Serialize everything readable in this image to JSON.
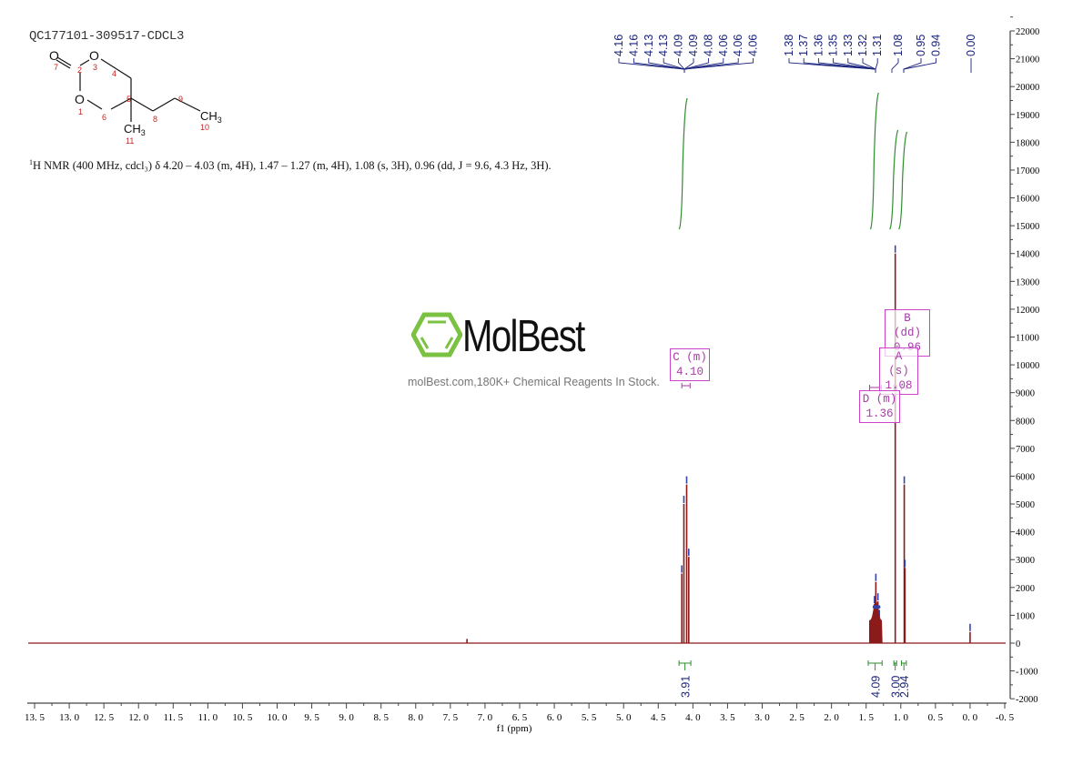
{
  "header": {
    "sample_id": "QC177101-309517-CDCL3",
    "nmr_description_prefix": "1",
    "nmr_description": "H NMR (400 MHz, cdcl₃) δ 4.20 – 4.03 (m, 4H), 1.47 – 1.27 (m, 4H), 1.08 (s, 3H), 0.96 (dd, J = 9.6, 4.3 Hz, 3H)."
  },
  "structure": {
    "atoms": [
      {
        "label": "O",
        "num": "7"
      },
      {
        "label": "",
        "num": "2"
      },
      {
        "label": "O",
        "num": "3"
      },
      {
        "label": "",
        "num": "4"
      },
      {
        "label": "",
        "num": "5"
      },
      {
        "label": "O",
        "num": "1"
      },
      {
        "label": "",
        "num": "6"
      },
      {
        "label": "",
        "num": "8"
      },
      {
        "label": "",
        "num": "9"
      },
      {
        "label": "CH3",
        "num": "10"
      },
      {
        "label": "CH3",
        "num": "11"
      }
    ]
  },
  "watermark": {
    "brand": "MolBest",
    "tagline": "molBest.com,180K+ Chemical Reagents In Stock."
  },
  "colors": {
    "spectrum": "#8b1a1a",
    "peak_labels": "#1a237e",
    "integral": "#2e8b2e",
    "multiplet_box": "#cc44cc",
    "axis": "#444444",
    "logo_green": "#7cc242"
  },
  "chart_data": {
    "type": "line",
    "title": "QC177101-309517-CDCL3",
    "xlabel": "f1 (ppm)",
    "ylabel": "",
    "xlim": [
      13.5,
      -0.5
    ],
    "ylim": [
      -2000,
      22000
    ],
    "x_ticks": [
      "13.5",
      "13.0",
      "12.5",
      "12.0",
      "11.5",
      "11.0",
      "10.5",
      "10.0",
      "9.5",
      "9.0",
      "8.5",
      "8.0",
      "7.5",
      "7.0",
      "6.5",
      "6.0",
      "5.5",
      "5.0",
      "4.5",
      "4.0",
      "3.5",
      "3.0",
      "2.5",
      "2.0",
      "1.5",
      "1.0",
      "0.5",
      "0.0",
      "-0.5"
    ],
    "y_ticks": [
      "22000",
      "21000",
      "20000",
      "19000",
      "18000",
      "17000",
      "16000",
      "15000",
      "14000",
      "13000",
      "12000",
      "11000",
      "10000",
      "9000",
      "8000",
      "7000",
      "6000",
      "5000",
      "4000",
      "3000",
      "2000",
      "1000",
      "0",
      "-1000",
      "-2000"
    ],
    "grid": false,
    "peaks": [
      {
        "ppm": 7.26,
        "intensity": 150
      },
      {
        "ppm": 4.16,
        "intensity": 2500
      },
      {
        "ppm": 4.13,
        "intensity": 5000
      },
      {
        "ppm": 4.09,
        "intensity": 5700
      },
      {
        "ppm": 4.06,
        "intensity": 3100
      },
      {
        "ppm": 1.38,
        "intensity": 1400
      },
      {
        "ppm": 1.36,
        "intensity": 2200
      },
      {
        "ppm": 1.33,
        "intensity": 1500
      },
      {
        "ppm": 1.31,
        "intensity": 900
      },
      {
        "ppm": 1.08,
        "intensity": 14000
      },
      {
        "ppm": 0.95,
        "intensity": 5700
      },
      {
        "ppm": 0.94,
        "intensity": 2700
      },
      {
        "ppm": 0.0,
        "intensity": 400
      }
    ],
    "peak_labels_group1": [
      "4.16",
      "4.16",
      "4.13",
      "4.13",
      "4.09",
      "4.09",
      "4.08",
      "4.06",
      "4.06",
      "4.06"
    ],
    "peak_labels_group2": [
      "1.38",
      "1.37",
      "1.36",
      "1.35",
      "1.33",
      "1.32",
      "1.31"
    ],
    "peak_labels_single": [
      "1.08"
    ],
    "peak_labels_group3": [
      "0.95",
      "0.94"
    ],
    "peak_labels_ref": [
      "0.00"
    ],
    "multiplets": [
      {
        "id": "C",
        "type": "m",
        "shift": "4.10"
      },
      {
        "id": "B",
        "type": "dd",
        "shift": "0.96"
      },
      {
        "id": "A",
        "type": "s",
        "shift": "1.08"
      },
      {
        "id": "D",
        "type": "m",
        "shift": "1.36"
      }
    ],
    "integrals": [
      {
        "range": [
          4.2,
          4.03
        ],
        "value": "3.91"
      },
      {
        "range": [
          1.47,
          1.27
        ],
        "value": "4.09"
      },
      {
        "range": [
          1.1,
          1.06
        ],
        "value": "3.00"
      },
      {
        "range": [
          0.99,
          0.92
        ],
        "value": "2.94"
      }
    ]
  }
}
